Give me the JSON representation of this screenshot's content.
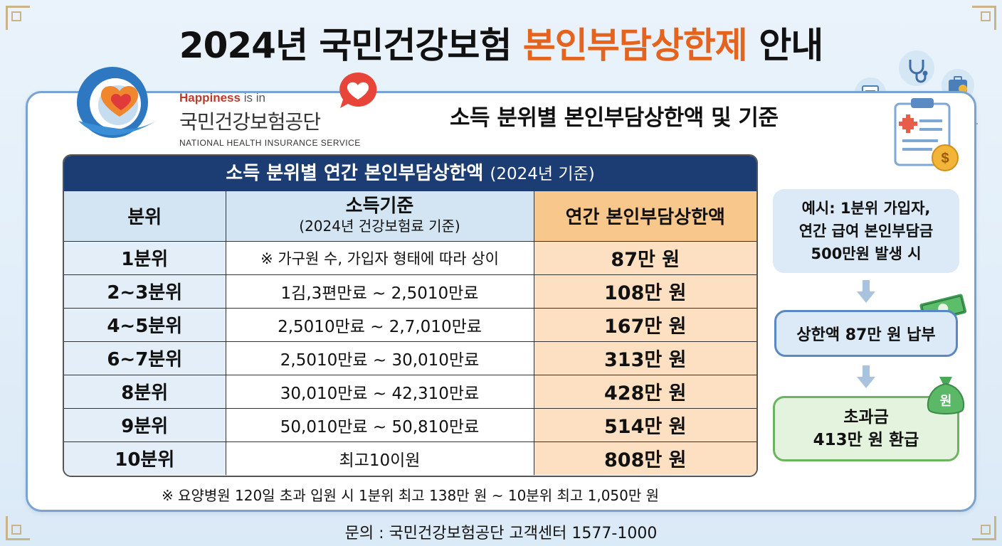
{
  "title": {
    "year": "2024년 국민건강보험",
    "highlight": "본인부담상한제",
    "suffix": "안내"
  },
  "brand": {
    "tagline_a": "Happiness",
    "tagline_b": " is in",
    "name_kr": "국민건강보험공단",
    "name_en": "NATIONAL HEALTH INSURANCE SERVICE"
  },
  "subtitle": "소득 분위별 본인부담상한액 및 기준",
  "table": {
    "title": "소득 분위별 연간 본인부담상한액",
    "title_note": "(2024년 기준)",
    "headers": {
      "col1": "분위",
      "col2": "소득기준",
      "col2_sub": "(2024년 건강보험료 기준)",
      "col3": "연간 본인부담상한액"
    },
    "rows": [
      {
        "tier": "1분위",
        "criteria": "※ 가구원 수, 가입자 형태에 따라 상이",
        "cap": "87만 원"
      },
      {
        "tier": "2~3분위",
        "criteria": "1김,3편만료 ~ 2,5010만료",
        "cap": "108만 원"
      },
      {
        "tier": "4~5분위",
        "criteria": "2,5010만료 ~ 2,7,010만료",
        "cap": "167만 원"
      },
      {
        "tier": "6~7분위",
        "criteria": "2,5010만료 ~ 30,010만료",
        "cap": "313만 원"
      },
      {
        "tier": "8분위",
        "criteria": "30,010만료 ~ 42,310만료",
        "cap": "428만 원"
      },
      {
        "tier": "9분위",
        "criteria": "50,010만료 ~ 50,810만료",
        "cap": "514만 원"
      },
      {
        "tier": "10분위",
        "criteria": "최고10이원",
        "cap": "808만 원"
      }
    ],
    "note": "※ 요양병원 120일 초과 입원 시 1분위 최고 138만 원 ~ 10분위 최고 1,050만 원"
  },
  "example": {
    "line1": "예시: 1분위 가입자,",
    "line2": "연간 급여 본인부담금",
    "line3": "500만원 발생 시",
    "step2": "상한액 87만 원 납부",
    "step3_line1": "초과금",
    "step3_line2": "413만 원 환급",
    "money_bag_label": "원"
  },
  "footer": "문의 : 국민건강보험공단 고객센터 1577-1000",
  "icons": [
    "stethoscope-icon",
    "clipboard-icon",
    "medical-bag-icon",
    "id-card-icon",
    "dollar-coin-icon",
    "heart-icon",
    "banknote-icon",
    "money-bag-icon"
  ],
  "colors": {
    "accent": "#e4631f",
    "navy": "#1c3d73",
    "header_blue": "#d3e4f3",
    "header_orange": "#f8c78b",
    "cap_cell": "#fde0c2",
    "green": "#6cb460"
  }
}
